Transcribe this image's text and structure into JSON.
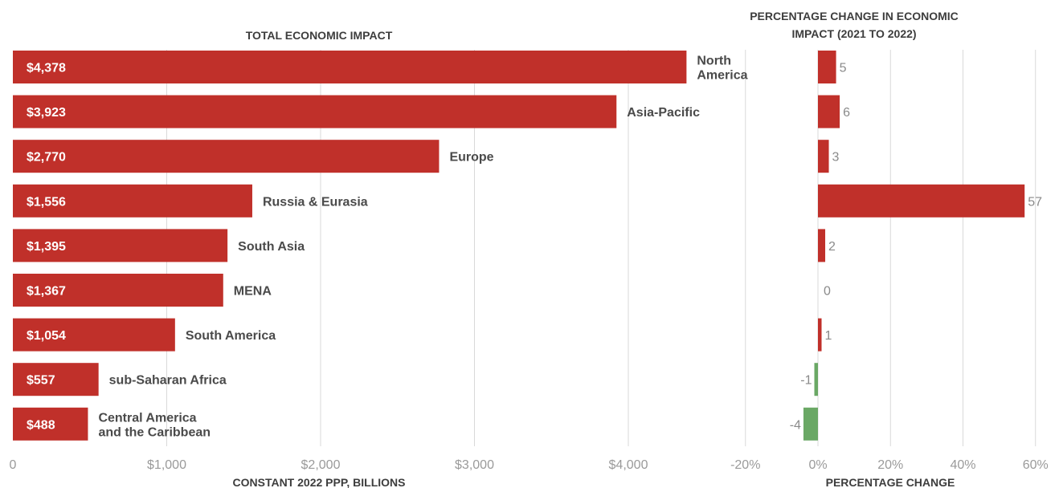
{
  "chart_data": [
    {
      "type": "bar",
      "orientation": "horizontal",
      "title": "TOTAL ECONOMIC IMPACT",
      "xlabel": "CONSTANT 2022 PPP, BILLIONS",
      "categories": [
        "North America",
        "Asia-Pacific",
        "Europe",
        "Russia & Eurasia",
        "South Asia",
        "MENA",
        "South America",
        "sub-Saharan Africa",
        "Central America and the Caribbean"
      ],
      "values": [
        4378,
        3923,
        2770,
        1556,
        1395,
        1367,
        1054,
        557,
        488
      ],
      "value_labels": [
        "$4,378",
        "$3,923",
        "$2,770",
        "$1,556",
        "$1,395",
        "$1,367",
        "$1,054",
        "$557",
        "$488"
      ],
      "xlim": [
        0,
        4500
      ],
      "ticks": [
        0,
        1000,
        2000,
        3000,
        4000
      ],
      "tick_labels": [
        "0",
        "$1,000",
        "$2,000",
        "$3,000",
        "$4,000"
      ],
      "grid": true,
      "color": "#c0302a"
    },
    {
      "type": "bar",
      "orientation": "horizontal",
      "title": "PERCENTAGE CHANGE IN ECONOMIC IMPACT (2021 TO 2022)",
      "title_lines": [
        "PERCENTAGE CHANGE IN ECONOMIC",
        "IMPACT (2021 TO 2022)"
      ],
      "xlabel": "PERCENTAGE CHANGE",
      "categories": [
        "North America",
        "Asia-Pacific",
        "Europe",
        "Russia & Eurasia",
        "South Asia",
        "MENA",
        "South America",
        "sub-Saharan Africa",
        "Central America and the Caribbean"
      ],
      "values": [
        5,
        6,
        3,
        57,
        2,
        0,
        1,
        -1,
        -4
      ],
      "value_labels": [
        "5",
        "6",
        "3",
        "57",
        "2",
        "0",
        "1",
        "-1",
        "-4"
      ],
      "xlim": [
        -20,
        60
      ],
      "ticks": [
        -20,
        0,
        20,
        40,
        60
      ],
      "tick_labels": [
        "-20%",
        "0%",
        "20%",
        "40%",
        "60%"
      ],
      "grid": true,
      "colors": {
        "positive": "#c0302a",
        "negative": "#6aa865"
      }
    }
  ]
}
